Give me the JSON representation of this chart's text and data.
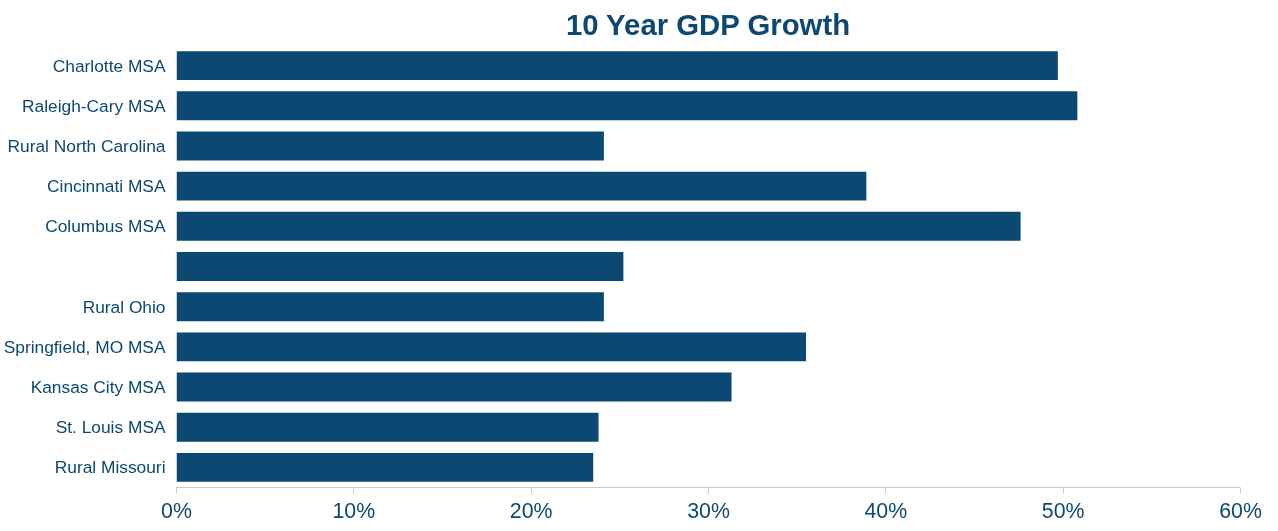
{
  "chart_data": {
    "type": "bar",
    "orientation": "horizontal",
    "title": "10 Year GDP Growth",
    "categories": [
      "Charlotte MSA",
      "Raleigh-Cary MSA",
      "Rural North Carolina",
      "Cincinnati MSA",
      "Columbus MSA",
      null,
      "Rural Ohio",
      "Springfield, MO MSA",
      "Kansas City MSA",
      "St. Louis MSA",
      "Rural Missouri"
    ],
    "values": [
      49.7,
      50.8,
      24.1,
      38.9,
      47.6,
      25.2,
      24.1,
      35.5,
      31.3,
      23.8,
      23.5
    ],
    "color": "#0b4872",
    "xlim": [
      0,
      60
    ],
    "xticks": [
      {
        "value": 0,
        "label": "0%"
      },
      {
        "value": 10,
        "label": "10%"
      },
      {
        "value": 20,
        "label": "20%"
      },
      {
        "value": 30,
        "label": "30%"
      },
      {
        "value": 40,
        "label": "40%"
      },
      {
        "value": 50,
        "label": "50%"
      },
      {
        "value": 60,
        "label": "60%"
      }
    ],
    "grid": false
  }
}
